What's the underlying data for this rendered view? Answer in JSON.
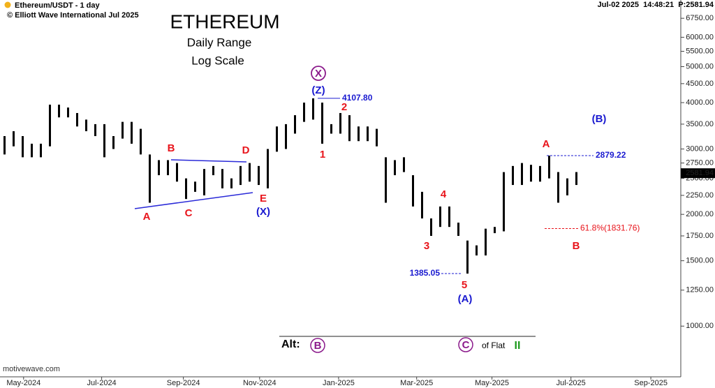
{
  "chart_data": {
    "type": "ohlc",
    "title": "ETHEREUM",
    "subtitle": "Daily Range",
    "scale_note": "Log Scale",
    "symbol": "Ethereum/USDT - 1 day",
    "copyright": "© Elliott Wave International Jul 2025",
    "status": "Jul-02 2025  14:48:21  P:2581.94",
    "watermark": "motivewave.com",
    "log_scale": true,
    "color": "#000000",
    "x": [
      0,
      1,
      2,
      3,
      4,
      5,
      6,
      7,
      8,
      9,
      10,
      11,
      12,
      13,
      14,
      15,
      16,
      17,
      18,
      19,
      20,
      21,
      22,
      23,
      24,
      25,
      26,
      27,
      28,
      29,
      30,
      31,
      32,
      33,
      34,
      35,
      36,
      37,
      38,
      39,
      40,
      41,
      42,
      43,
      44,
      45,
      46,
      47,
      48,
      49,
      50,
      51,
      52,
      53,
      54,
      55,
      56,
      57,
      58,
      59,
      60,
      61,
      62,
      63
    ],
    "high": [
      3250,
      3350,
      3250,
      3100,
      3100,
      3950,
      3950,
      3880,
      3750,
      3600,
      3500,
      3500,
      3250,
      3550,
      3550,
      3400,
      2900,
      2800,
      2800,
      2750,
      2500,
      2450,
      2650,
      2700,
      2650,
      2500,
      2700,
      2750,
      2700,
      3000,
      3450,
      3500,
      3700,
      4000,
      4107.8,
      4000,
      3500,
      3750,
      3700,
      3450,
      3450,
      3400,
      2850,
      2800,
      2850,
      2550,
      2300,
      1950,
      2100,
      2100,
      1900,
      1700,
      1650,
      1830,
      1850,
      2600,
      2700,
      2750,
      2720,
      2700,
      2879.22,
      2600,
      2500,
      2600
    ],
    "low": [
      2900,
      3050,
      2850,
      2850,
      2850,
      3050,
      3650,
      3650,
      3450,
      3350,
      3250,
      2850,
      3000,
      3200,
      3100,
      2900,
      2150,
      2550,
      2550,
      2450,
      2200,
      2300,
      2250,
      2550,
      2350,
      2350,
      2400,
      2450,
      2400,
      2350,
      2950,
      3000,
      3300,
      3550,
      3600,
      3100,
      3300,
      3300,
      3150,
      3150,
      3150,
      3050,
      2150,
      2550,
      2600,
      2100,
      1950,
      1750,
      1850,
      1850,
      1750,
      1385.05,
      1550,
      1550,
      1780,
      1800,
      2400,
      2400,
      2450,
      2450,
      2500,
      2150,
      2250,
      2400
    ],
    "last_price": {
      "value": 2581.94,
      "label": "2581.94"
    },
    "xlim": [
      -0.5,
      74.5
    ],
    "xticks": [
      {
        "value": 2.1,
        "label": "May-2024"
      },
      {
        "value": 10.7,
        "label": "Jul-2024"
      },
      {
        "value": 19.7,
        "label": "Sep-2024"
      },
      {
        "value": 28.1,
        "label": "Nov-2024"
      },
      {
        "value": 36.8,
        "label": "Jan-2025"
      },
      {
        "value": 45.4,
        "label": "Mar-2025"
      },
      {
        "value": 53.7,
        "label": "May-2025"
      },
      {
        "value": 62.4,
        "label": "Jul-2025"
      },
      {
        "value": 71.2,
        "label": "Sep-2025"
      }
    ],
    "ylim": [
      730,
      7560
    ],
    "yticks": [
      {
        "value": 1000,
        "label": "1000.00"
      },
      {
        "value": 1250,
        "label": "1250.00"
      },
      {
        "value": 1500,
        "label": "1500.00"
      },
      {
        "value": 1750,
        "label": "1750.00"
      },
      {
        "value": 2000,
        "label": "2000.00"
      },
      {
        "value": 2250,
        "label": "2250.00"
      },
      {
        "value": 2500,
        "label": "2500.00"
      },
      {
        "value": 2750,
        "label": "2750.00"
      },
      {
        "value": 3000,
        "label": "3000.00"
      },
      {
        "value": 3500,
        "label": "3500.00"
      },
      {
        "value": 4000,
        "label": "4000.00"
      },
      {
        "value": 4500,
        "label": "4500.00"
      },
      {
        "value": 5000,
        "label": "5000.00"
      },
      {
        "value": 5500,
        "label": "5500.00"
      },
      {
        "value": 6000,
        "label": "6000.00"
      },
      {
        "value": 6750,
        "label": "6750.00"
      }
    ],
    "wave_labels": [
      {
        "text": "A",
        "color": "#e8141b"
      },
      {
        "text": "B",
        "color": "#e8141b"
      },
      {
        "text": "C",
        "color": "#e8141b"
      },
      {
        "text": "D",
        "color": "#e8141b"
      },
      {
        "text": "E",
        "color": "#e8141b"
      },
      {
        "text": "(X)",
        "color": "#1a1ad0"
      },
      {
        "text": "X",
        "color": "#8b1a8b"
      },
      {
        "text": "(Z)",
        "color": "#1a1ad0"
      },
      {
        "text": "1",
        "color": "#e8141b"
      },
      {
        "text": "2",
        "color": "#e8141b"
      },
      {
        "text": "3",
        "color": "#e8141b"
      },
      {
        "text": "4",
        "color": "#e8141b"
      },
      {
        "text": "5",
        "color": "#e8141b"
      },
      {
        "text": "(A)",
        "color": "#1a1ad0"
      },
      {
        "text": "(B)",
        "color": "#1a1ad0"
      },
      {
        "text": "A",
        "color": "#e8141b"
      },
      {
        "text": "B",
        "color": "#e8141b"
      }
    ],
    "price_levels": [
      {
        "value": 4107.8,
        "label": "4107.80",
        "color": "#1a1ad0"
      },
      {
        "value": 1385.05,
        "label": "1385.05",
        "color": "#1a1ad0"
      },
      {
        "value": 2879.22,
        "label": "2879.22",
        "color": "#1a1ad0"
      },
      {
        "value": 1831.76,
        "label": "61.8%(1831.76)",
        "color": "#e8141b"
      }
    ],
    "alt": {
      "label": "Alt:",
      "items": [
        "B",
        "C"
      ],
      "text": "of Flat",
      "mark": "II"
    }
  }
}
